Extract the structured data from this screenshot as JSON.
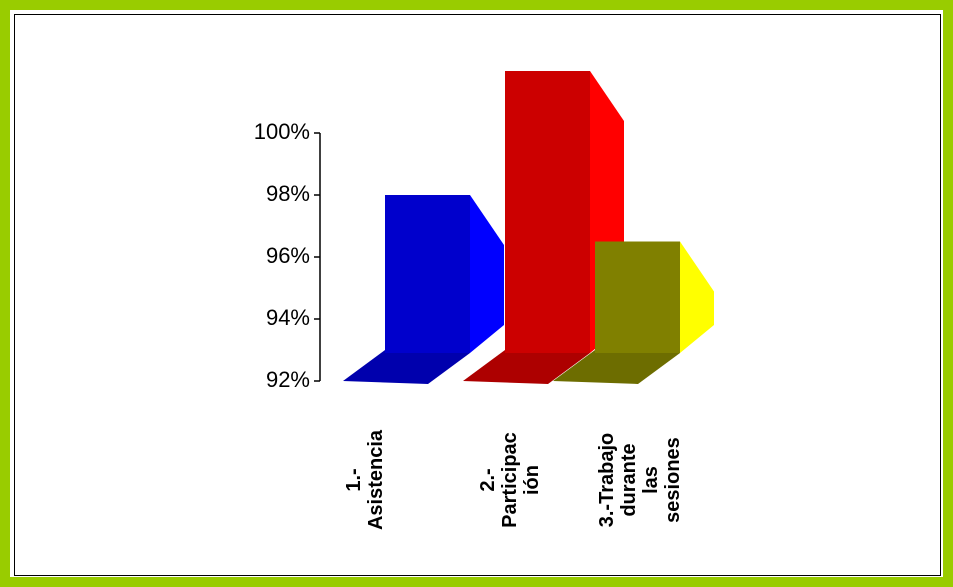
{
  "chart_data": {
    "type": "bar3d",
    "categories": [
      "1.-\nAsistencia",
      "2.-\nParticipac\nión",
      "3.-Trabajo\ndurante\nlas\nsesiones"
    ],
    "values": [
      97,
      101,
      95.5
    ],
    "colors": [
      "#0000cc",
      "#cc0000",
      "#808000"
    ],
    "side_colors": [
      "#0000ff",
      "#ff0000",
      "#ffff00"
    ],
    "ylim": [
      92,
      100
    ],
    "yticks": [
      {
        "value": 92,
        "label": "92%"
      },
      {
        "value": 94,
        "label": "94%"
      },
      {
        "value": 96,
        "label": "96%"
      },
      {
        "value": 98,
        "label": "98%"
      },
      {
        "value": 100,
        "label": "100%"
      }
    ],
    "grid": false
  }
}
